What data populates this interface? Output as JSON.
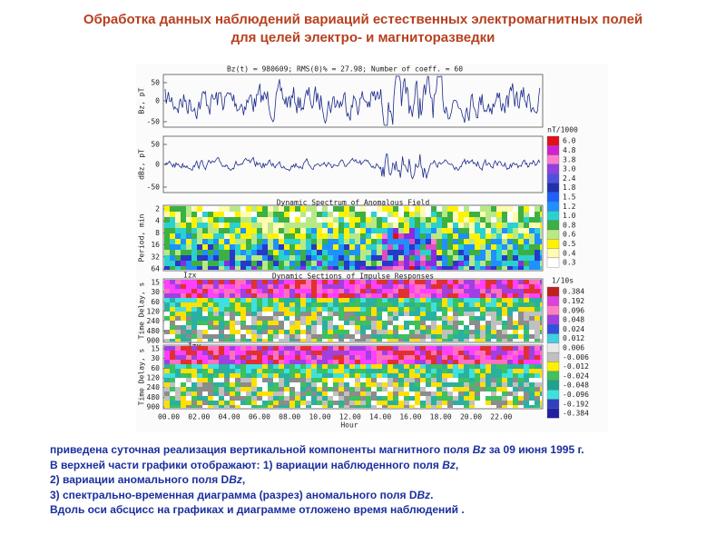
{
  "header": {
    "title": [
      "Обработка данных наблюдений вариаций естественных электромагнитных полей",
      "для целей электро- и магниторазведки"
    ]
  },
  "figure": {
    "caption_top": "Bz(t) = 980609;  RMS(0)% = 27.98;  Number of coeff. = 60",
    "panels": [
      {
        "ylabel": "Bz, pT",
        "yticks": [
          "50",
          "0",
          "-50"
        ]
      },
      {
        "ylabel": "dBz, pT",
        "yticks": [
          "50",
          "0",
          "-50"
        ]
      },
      {
        "title": "Dynamic Spectrum of Anomalous Field",
        "ylabel": "Period, min",
        "yticks": [
          "2",
          "4",
          "8",
          "16",
          "32",
          "64"
        ]
      },
      {
        "tag": "Izx",
        "title": "Dynamic Sections of Impulse Responses",
        "ylabel": "Time Delay, s",
        "yticks": [
          "15",
          "30",
          "60",
          "120",
          "240",
          "480",
          "900"
        ]
      },
      {
        "tag": "-Izy",
        "ylabel": "Time Delay, s",
        "yticks": [
          "15",
          "30",
          "60",
          "120",
          "240",
          "480",
          "900"
        ]
      }
    ],
    "xticks": [
      "00.00",
      "02.00",
      "04.00",
      "06.00",
      "08.00",
      "10.00",
      "12.00",
      "14.00",
      "16.00",
      "18.00",
      "20.00",
      "22.00"
    ],
    "xlabel": "Hour",
    "colorbars": [
      {
        "title": "nT/1000",
        "labels": [
          "6.0",
          "4.8",
          "3.8",
          "3.0",
          "2.4",
          "1.8",
          "1.5",
          "1.2",
          "1.0",
          "0.8",
          "0.6",
          "0.5",
          "0.4",
          "0.3"
        ]
      },
      {
        "title": "1/10s",
        "labels": [
          "0.384",
          "0.192",
          "0.096",
          "0.048",
          "0.024",
          "0.012",
          "0.006",
          "-0.006",
          "-0.012",
          "-0.024",
          "-0.048",
          "-0.096",
          "-0.192",
          "-0.384"
        ]
      }
    ]
  },
  "caption": [
    [
      "приведена суточная реализация вертикальной компоненты магнитного поля ",
      "Bz",
      " за 09 июня 1995 г."
    ],
    [
      "В верхней части графики отображают: 1) вариации наблюденного поля ",
      "Bz",
      ","
    ],
    [
      "2) вариации аномального поля D",
      "Bz",
      ","
    ],
    [
      "3) спектрально-временная диаграмма (разрез) аномального поля D",
      "Bz",
      "."
    ],
    [
      "Вдоль оси абсцисс на графиках и диаграмме отложено время наблюдений ."
    ]
  ]
}
